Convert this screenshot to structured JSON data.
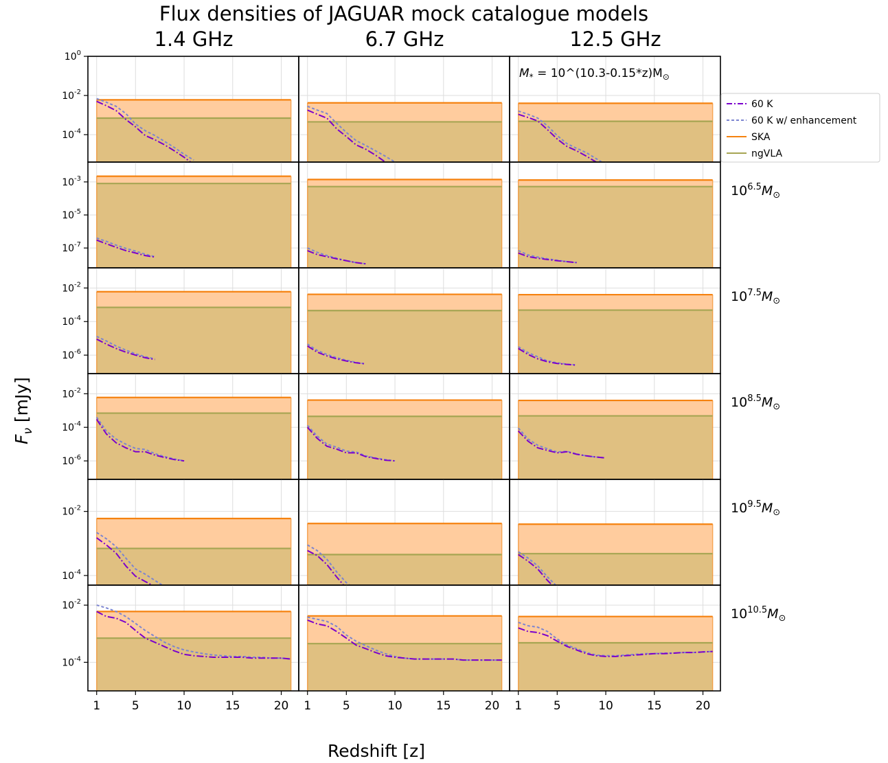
{
  "chart_data": {
    "type": "line",
    "title": "Flux densities of JAGUAR mock catalogue models",
    "column_titles": [
      "1.4 GHz",
      "6.7 GHz",
      "12.5 GHz"
    ],
    "row_labels": [
      {
        "prefix": "M",
        "sub": "*",
        "text": " = 10^(10.3-0.15*z)M",
        "sun": "⊙"
      },
      {
        "base": "10",
        "exp": "6.5",
        "m": "M",
        "sun": "⊙"
      },
      {
        "base": "10",
        "exp": "7.5",
        "m": "M",
        "sun": "⊙"
      },
      {
        "base": "10",
        "exp": "8.5",
        "m": "M",
        "sun": "⊙"
      },
      {
        "base": "10",
        "exp": "9.5",
        "m": "M",
        "sun": "⊙"
      },
      {
        "base": "10",
        "exp": "10.5",
        "m": "M",
        "sun": "⊙"
      }
    ],
    "xlabel": "Redshift [z]",
    "ylabel": {
      "main": "F",
      "sub": "ν",
      "unit": " [mJy]"
    },
    "xlim": [
      0.1,
      21.8
    ],
    "x_ticks": [
      1,
      5,
      10,
      15,
      20
    ],
    "x_tick_labels": [
      "1",
      "5",
      "10",
      "15",
      "20"
    ],
    "y_scale": "log",
    "legend": {
      "placement": "right of top-right panel",
      "entries": [
        {
          "label": "60 K",
          "color": "#7a00cc",
          "style": "dashdot"
        },
        {
          "label": "60 K w/ enhancement",
          "color": "#7b84d0",
          "style": "dotted"
        },
        {
          "label": "SKA",
          "color": "#f5820f",
          "style": "solid"
        },
        {
          "label": "ngVLA",
          "color": "#a6a552",
          "style": "solid"
        }
      ]
    },
    "colors": {
      "k60": "#7a00cc",
      "k60_enh": "#7b84d0",
      "ska": "#f5820f",
      "ska_fill": "#ffcc9e",
      "ngvla": "#a6a552",
      "ngvla_fill": "#e0c081",
      "grid": "#dddddd"
    },
    "x": [
      1,
      2,
      3,
      4,
      5,
      6,
      7,
      8,
      9,
      10,
      11,
      12,
      13,
      14,
      15,
      16,
      17,
      18,
      19,
      20,
      21
    ],
    "rows": [
      {
        "ylim_exp": [
          -5.4,
          0
        ],
        "y_ticks_exp": [
          0,
          -2,
          -4
        ],
        "ska": [
          0.006,
          0.0042,
          0.004
        ],
        "ngvla": [
          0.0007,
          0.00045,
          0.00048
        ],
        "k60": [
          [
            0.005,
            0.003,
            0.0017,
            0.0006,
            0.00025,
            9e-05,
            5.5e-05,
            3e-05,
            1.5e-05,
            7e-06,
            3e-06
          ],
          [
            0.0018,
            0.0011,
            0.0007,
            0.0002,
            8e-05,
            3e-05,
            1.8e-05,
            9e-06,
            4e-06,
            2e-06,
            1e-06
          ],
          [
            0.0011,
            0.00075,
            0.0005,
            0.00018,
            6e-05,
            2.5e-05,
            1.5e-05,
            8e-06,
            4e-06,
            2e-06,
            1e-06
          ]
        ],
        "k60_enh": [
          [
            0.007,
            0.0045,
            0.0028,
            0.0012,
            0.00035,
            0.00016,
            9e-05,
            4.5e-05,
            2.2e-05,
            1e-05,
            5e-06
          ],
          [
            0.0028,
            0.0018,
            0.0012,
            0.00038,
            0.00013,
            5e-05,
            2.8e-05,
            1.5e-05,
            8e-06,
            4e-06,
            2e-06
          ],
          [
            0.0016,
            0.0011,
            0.0007,
            0.00028,
            9e-05,
            3.5e-05,
            2e-05,
            1.2e-05,
            6e-06,
            3e-06,
            1.5e-06
          ]
        ]
      },
      {
        "ylim_exp": [
          -8.2,
          -1.8
        ],
        "y_ticks_exp": [
          -3,
          -5,
          -7
        ],
        "ska": [
          0.0022,
          0.0014,
          0.0013
        ],
        "ngvla": [
          0.0008,
          0.00052,
          0.00052
        ],
        "k60": [
          [
            3e-07,
            1.8e-07,
            1.1e-07,
            7e-08,
            5e-08,
            3.5e-08,
            2.8e-08
          ],
          [
            7e-08,
            4e-08,
            3e-08,
            2.2e-08,
            1.7e-08,
            1.3e-08,
            1.1e-08
          ],
          [
            5e-08,
            3e-08,
            2.4e-08,
            2e-08,
            1.7e-08,
            1.5e-08,
            1.3e-08
          ]
        ],
        "k60_enh": [
          [
            4e-07,
            2.5e-07,
            1.5e-07,
            9.5e-08,
            6.5e-08,
            4.2e-08,
            3e-08
          ],
          [
            1e-07,
            5.5e-08,
            3.5e-08,
            2.4e-08,
            1.7e-08,
            1.3e-08,
            1.1e-08
          ],
          [
            7e-08,
            3.8e-08,
            2.8e-08,
            2.2e-08,
            1.8e-08,
            1.5e-08,
            1.3e-08
          ]
        ]
      },
      {
        "ylim_exp": [
          -7.1,
          -0.8
        ],
        "y_ticks_exp": [
          -2,
          -4,
          -6
        ],
        "ska": [
          0.006,
          0.0042,
          0.004
        ],
        "ngvla": [
          0.0007,
          0.00045,
          0.00048
        ],
        "k60": [
          [
            9e-06,
            4.5e-06,
            2.5e-06,
            1.5e-06,
            1e-06,
            7e-07,
            5.5e-07
          ],
          [
            3.5e-06,
            1.5e-06,
            9e-07,
            6e-07,
            4.5e-07,
            3.5e-07,
            3e-07
          ],
          [
            2.5e-06,
            1.1e-06,
            6e-07,
            4e-07,
            3.2e-07,
            2.8e-07,
            2.5e-07
          ]
        ],
        "k60_enh": [
          [
            1.3e-05,
            7e-06,
            3.5e-06,
            2e-06,
            1.2e-06,
            8e-07,
            6e-07
          ],
          [
            4.5e-06,
            1.9e-06,
            1.1e-06,
            7e-07,
            5e-07,
            3.7e-07,
            3e-07
          ],
          [
            3.2e-06,
            1.4e-06,
            8e-07,
            4.5e-07,
            3.5e-07,
            2.9e-07,
            2.6e-07
          ]
        ]
      },
      {
        "ylim_exp": [
          -7.1,
          -0.8
        ],
        "y_ticks_exp": [
          -2,
          -4,
          -6
        ],
        "ska": [
          0.006,
          0.0042,
          0.004
        ],
        "ngvla": [
          0.0007,
          0.00045,
          0.00048
        ],
        "k60": [
          [
            0.0003,
            4e-05,
            1.2e-05,
            6e-06,
            3.5e-06,
            3.5e-06,
            2.2e-06,
            1.6e-06,
            1.2e-06,
            1e-06
          ],
          [
            0.0001,
            2.2e-05,
            7.5e-06,
            5e-06,
            3e-06,
            3e-06,
            1.8e-06,
            1.4e-06,
            1.1e-06,
            1e-06
          ],
          [
            6e-05,
            1.5e-05,
            6e-06,
            4.2e-06,
            3e-06,
            3.5e-06,
            2.5e-06,
            2e-06,
            1.7e-06,
            1.5e-06
          ]
        ],
        "k60_enh": [
          [
            0.0004,
            6e-05,
            2e-05,
            1e-05,
            5.5e-06,
            4.8e-06,
            2.7e-06,
            1.8e-06,
            1.3e-06,
            1e-06
          ],
          [
            0.00013,
            3e-05,
            1e-05,
            6.5e-06,
            3.8e-06,
            3.4e-06,
            2e-06,
            1.5e-06,
            1.2e-06,
            1e-06
          ],
          [
            9e-05,
            2e-05,
            8.5e-06,
            5.2e-06,
            3.4e-06,
            3.7e-06,
            2.6e-06,
            2e-06,
            1.7e-06,
            1.5e-06
          ]
        ]
      },
      {
        "ylim_exp": [
          -4.3,
          -1.0
        ],
        "y_ticks_exp": [
          -2,
          -4
        ],
        "ska": [
          0.006,
          0.0042,
          0.004
        ],
        "ngvla": [
          0.0007,
          0.00045,
          0.00048
        ],
        "k60": [
          [
            0.0015,
            0.0009,
            0.0005,
            0.0002,
            9.5e-05,
            6.5e-05,
            4.5e-05,
            3e-05,
            1.8e-05,
            1e-05
          ],
          [
            0.0006,
            0.00042,
            0.00022,
            9e-05,
            4e-05,
            2.5e-05,
            1.5e-05,
            9e-06,
            5e-06
          ],
          [
            0.00045,
            0.00028,
            0.00016,
            7e-05,
            3.5e-05,
            2e-05,
            1.2e-05,
            7e-06,
            4e-06
          ]
        ],
        "k60_enh": [
          [
            0.0022,
            0.0014,
            0.0008,
            0.00035,
            0.00016,
            0.00011,
            7e-05,
            4.5e-05,
            2.6e-05,
            1.4e-05
          ],
          [
            0.0009,
            0.0006,
            0.00032,
            0.00013,
            6e-05,
            3.5e-05,
            2e-05,
            1.2e-05,
            7e-06
          ],
          [
            0.00055,
            0.00035,
            0.0002,
            9e-05,
            4.5e-05,
            2.6e-05,
            1.5e-05,
            9e-06,
            5e-06
          ]
        ]
      },
      {
        "ylim_exp": [
          -5.0,
          -1.3
        ],
        "y_ticks_exp": [
          -2,
          -4
        ],
        "ska": [
          0.006,
          0.0042,
          0.004
        ],
        "ngvla": [
          0.0007,
          0.00045,
          0.00048
        ],
        "k60": [
          [
            0.006,
            0.004,
            0.0035,
            0.0025,
            0.0013,
            0.0007,
            0.0005,
            0.00035,
            0.00025,
            0.00019,
            0.00017,
            0.00016,
            0.00015,
            0.00015,
            0.00015,
            0.00015,
            0.00014,
            0.00014,
            0.00014,
            0.00014,
            0.00013
          ],
          [
            0.003,
            0.0022,
            0.0019,
            0.0012,
            0.0007,
            0.0004,
            0.0003,
            0.00022,
            0.00017,
            0.00015,
            0.00014,
            0.00013,
            0.00013,
            0.00013,
            0.00013,
            0.00013,
            0.00012,
            0.00012,
            0.00012,
            0.00012,
            0.00012
          ],
          [
            0.0016,
            0.0012,
            0.0011,
            0.00085,
            0.00055,
            0.00036,
            0.00027,
            0.0002,
            0.00017,
            0.00016,
            0.00016,
            0.00017,
            0.00018,
            0.00019,
            0.0002,
            0.0002,
            0.00021,
            0.00022,
            0.00022,
            0.00023,
            0.00024
          ]
        ],
        "k60_enh": [
          [
            0.01,
            0.008,
            0.006,
            0.004,
            0.0023,
            0.0013,
            0.0008,
            0.0005,
            0.00035,
            0.00027,
            0.00023,
            0.0002,
            0.00018,
            0.00017,
            0.00016,
            0.00016,
            0.00015,
            0.00015,
            0.00014,
            0.00014,
            0.00013
          ],
          [
            0.0038,
            0.0032,
            0.0027,
            0.0018,
            0.0009,
            0.00055,
            0.00038,
            0.00027,
            0.0002,
            0.00016,
            0.00014,
            0.00013,
            0.00013,
            0.00013,
            0.00013,
            0.00013,
            0.00012,
            0.00012,
            0.00012,
            0.00012,
            0.00012
          ],
          [
            0.0025,
            0.0019,
            0.0017,
            0.0012,
            0.00065,
            0.0004,
            0.0003,
            0.00022,
            0.00018,
            0.00017,
            0.00017,
            0.00018,
            0.00019,
            0.0002,
            0.0002,
            0.00021,
            0.00021,
            0.00022,
            0.00022,
            0.00023,
            0.00024
          ]
        ]
      }
    ]
  }
}
